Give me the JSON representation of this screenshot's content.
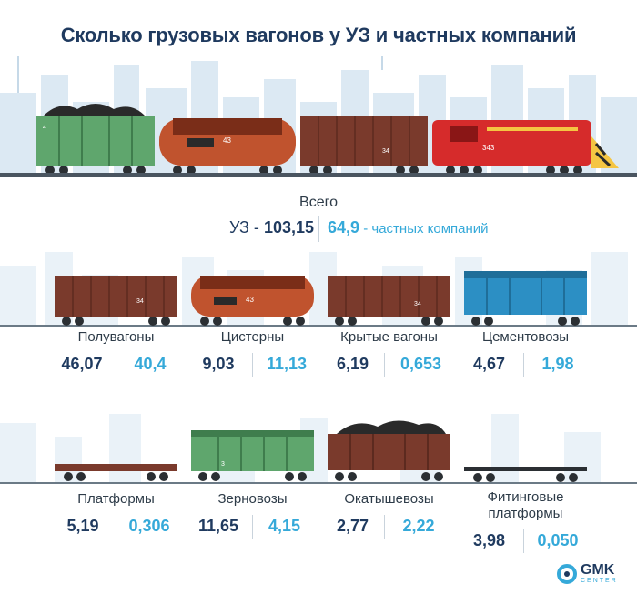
{
  "title": "Сколько грузовых вагонов у УЗ и частных компаний",
  "total": {
    "label": "Всего",
    "uz_prefix": "УЗ - ",
    "uz_value": "103,15",
    "private_value": "64,9",
    "private_suffix": " - частных компаний"
  },
  "categories": [
    {
      "label": "Полувагоны",
      "uz": "46,07",
      "private": "40,4"
    },
    {
      "label": "Цистерны",
      "uz": "9,03",
      "private": "11,13"
    },
    {
      "label": "Крытые вагоны",
      "uz": "6,19",
      "private": "0,653"
    },
    {
      "label": "Цементовозы",
      "uz": "4,67",
      "private": "1,98"
    },
    {
      "label": "Платформы",
      "uz": "5,19",
      "private": "0,306"
    },
    {
      "label": "Зерновозы",
      "uz": "11,65",
      "private": "4,15"
    },
    {
      "label": "Окатышевозы",
      "uz": "2,77",
      "private": "2,22"
    },
    {
      "label": "Фитинговые\nплатформы",
      "uz": "3,98",
      "private": "0,050"
    }
  ],
  "wagon_markings": {
    "green_hopper": "4",
    "tank": "43",
    "boxcar": "34",
    "locomotive": "343",
    "green_hopper_small": "3"
  },
  "logo": {
    "name": "GMK",
    "subtitle": "CENTER"
  },
  "colors": {
    "uz": "#1f3a5f",
    "private": "#35a9d9",
    "skyline": "#dce9f3",
    "wagon_brown": "#7a3a2c",
    "wagon_green": "#5fa66d",
    "tank_orange": "#c0532e",
    "cement_blue": "#2c8fc4",
    "locomotive_red": "#d62b2b"
  }
}
